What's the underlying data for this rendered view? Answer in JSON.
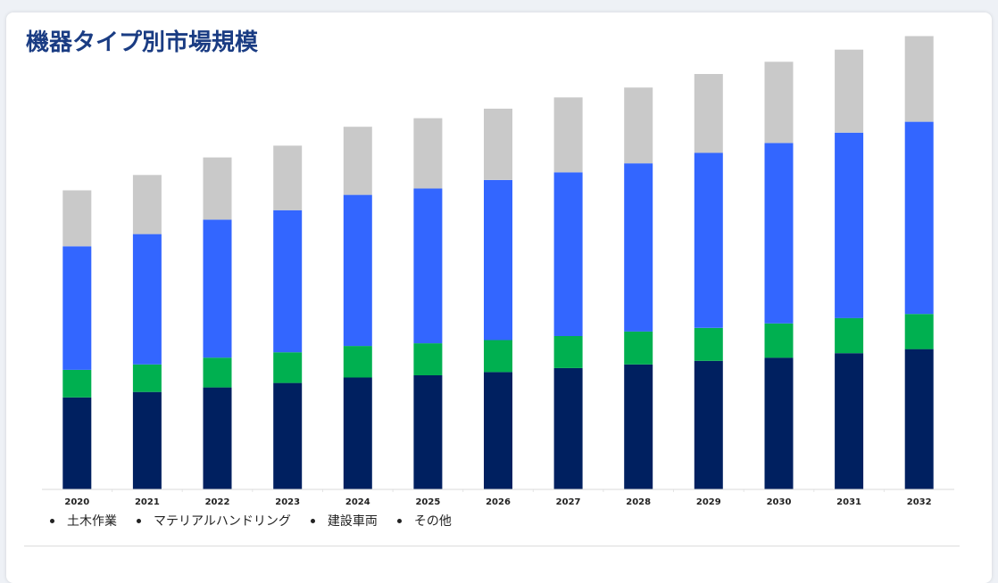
{
  "page": {
    "title": "機器タイプ別市場規模"
  },
  "chart_data": {
    "type": "bar",
    "stacked": true,
    "title": "機器タイプ別市場規模",
    "xlabel": "",
    "ylabel": "",
    "ylim": [
      0,
      100
    ],
    "grid": false,
    "legend_position": "bottom-left",
    "categories": [
      "2020",
      "2021",
      "2022",
      "2023",
      "2024",
      "2025",
      "2026",
      "2027",
      "2028",
      "2029",
      "2030",
      "2031",
      "2032"
    ],
    "series": [
      {
        "name": "土木作業",
        "color": "#002060",
        "values": [
          20.4,
          21.6,
          22.6,
          23.6,
          24.8,
          25.3,
          26.0,
          26.9,
          27.7,
          28.5,
          29.2,
          30.2,
          31.1
        ]
      },
      {
        "name": "マテリアルハンドリング",
        "color": "#00b050",
        "values": [
          6.1,
          6.1,
          6.6,
          6.8,
          7.0,
          7.1,
          7.1,
          7.1,
          7.3,
          7.3,
          7.6,
          7.8,
          7.8
        ]
      },
      {
        "name": "建設車両",
        "color": "#3366ff",
        "values": [
          27.4,
          28.9,
          30.6,
          31.5,
          33.5,
          34.3,
          35.5,
          36.3,
          37.3,
          38.8,
          40.0,
          41.1,
          42.6
        ]
      },
      {
        "name": "その他",
        "color": "#c9c9c9",
        "values": [
          12.4,
          13.1,
          13.8,
          14.3,
          15.1,
          15.6,
          15.8,
          16.6,
          16.8,
          17.5,
          18.0,
          18.4,
          19.0
        ]
      }
    ]
  }
}
